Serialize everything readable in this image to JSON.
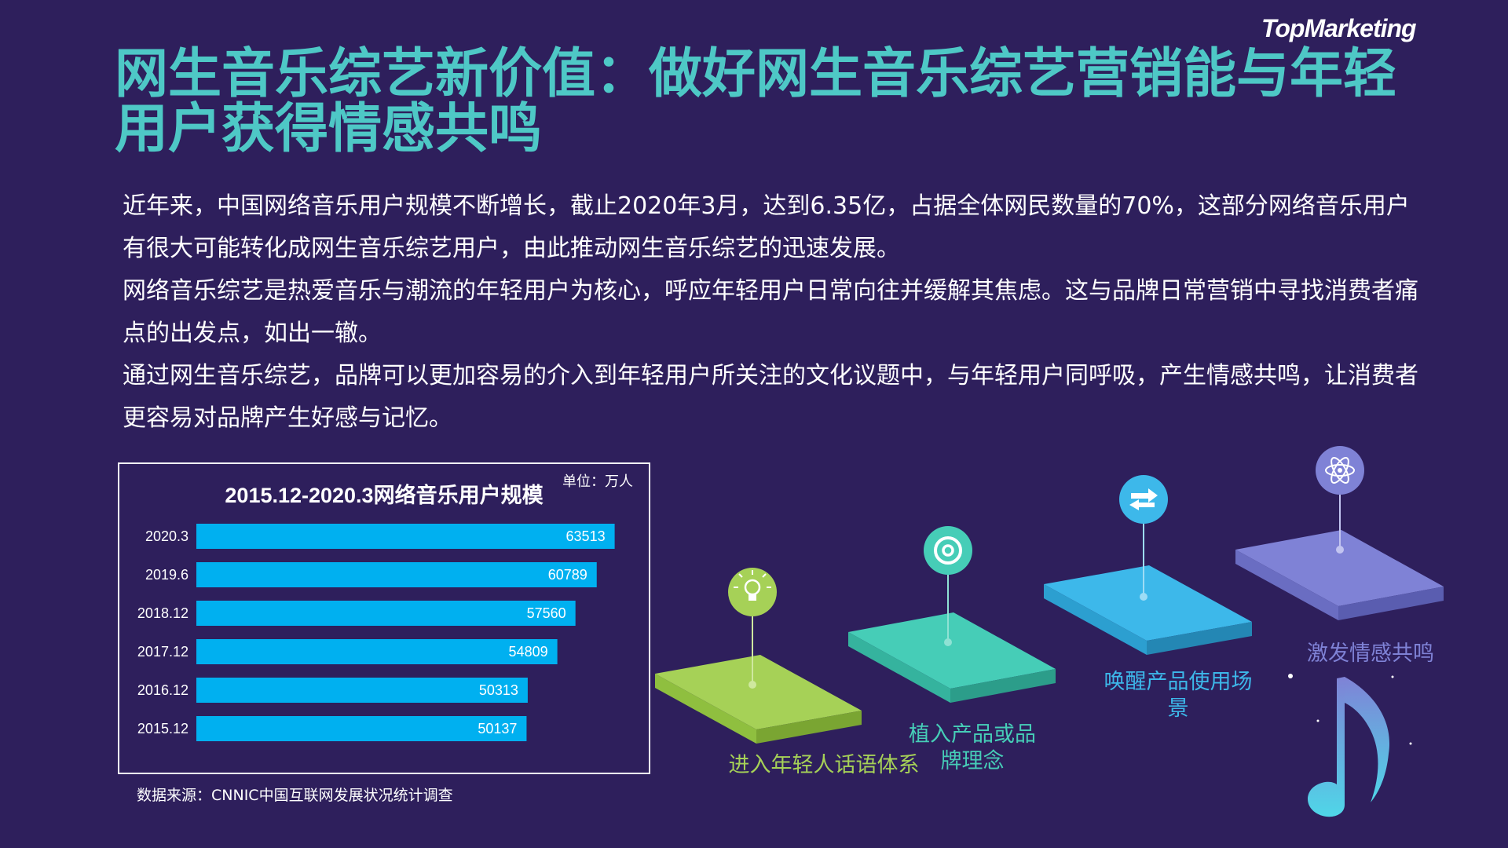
{
  "brand": "TopMarketing",
  "title": "网生音乐综艺新价值：做好网生音乐综艺营销能与年轻用户获得情感共鸣",
  "paragraphs": [
    "近年来，中国网络音乐用户规模不断增长，截止2020年3月，达到6.35亿，占据全体网民数量的70%，这部分网络音乐用户有很大可能转化成网生音乐综艺用户，由此推动网生音乐综艺的迅速发展。",
    "网络音乐综艺是热爱音乐与潮流的年轻用户为核心，呼应年轻用户日常向往并缓解其焦虑。这与品牌日常营销中寻找消费者痛点的出发点，如出一辙。",
    "通过网生音乐综艺，品牌可以更加容易的介入到年轻用户所关注的文化议题中，与年轻用户同呼吸，产生情感共鸣，让消费者更容易对品牌产生好感与记忆。"
  ],
  "chart_data": {
    "type": "bar",
    "orientation": "horizontal",
    "title": "2015.12-2020.3网络音乐用户规模",
    "unit": "单位：万人",
    "categories": [
      "2020.3",
      "2019.6",
      "2018.12",
      "2017.12",
      "2016.12",
      "2015.12"
    ],
    "values": [
      63513,
      60789,
      57560,
      54809,
      50313,
      50137
    ],
    "bar_color": "#00b0f0",
    "label_color": "#ffffff",
    "xlim": [
      0,
      70000
    ],
    "grid": false
  },
  "source": "数据来源：CNNIC中国互联网发展状况统计调查",
  "steps": [
    {
      "label": "进入年轻人话语体系",
      "icon": "lightbulb-icon",
      "color": "#a6d157"
    },
    {
      "label": "植入产品或品牌理念",
      "icon": "at-sign-icon",
      "color": "#46cdb7"
    },
    {
      "label": "唤醒产品使用场景",
      "icon": "switch-arrows-icon",
      "color": "#3db8ea"
    },
    {
      "label": "激发情感共鸣",
      "icon": "atom-icon",
      "color": "#7f82d6"
    }
  ],
  "colors": {
    "background": "#2e1f5c",
    "title": "#4ec8c6",
    "text": "#ffffff"
  },
  "decoration_icon": "music-note-icon"
}
